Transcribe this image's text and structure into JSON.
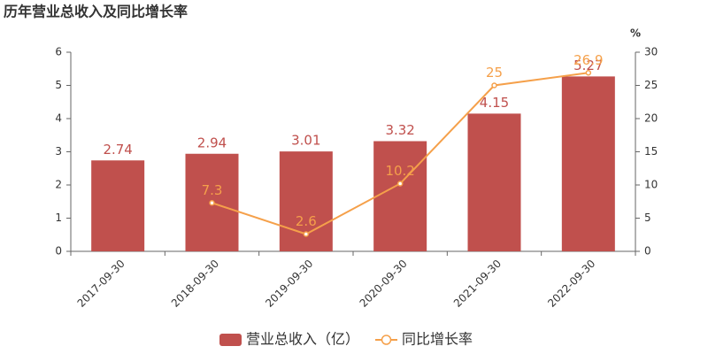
{
  "chart_data": {
    "type": "bar",
    "title": "历年营业总收入及同比增长率",
    "categories": [
      "2017-09-30",
      "2018-09-30",
      "2019-09-30",
      "2020-09-30",
      "2021-09-30",
      "2022-09-30"
    ],
    "series": [
      {
        "name": "营业总收入（亿）",
        "color": "#c0504d",
        "values": [
          2.74,
          2.94,
          3.01,
          3.32,
          4.15,
          5.27
        ]
      },
      {
        "name": "同比增长率",
        "type": "line",
        "axis": "y2",
        "color": "#f5a04a",
        "values": [
          null,
          7.3,
          2.6,
          10.2,
          25,
          26.9
        ]
      }
    ],
    "ylim": [
      0,
      6
    ],
    "yticks": [
      0,
      1,
      2,
      3,
      4,
      5,
      6
    ],
    "y2lim": [
      0,
      30
    ],
    "y2ticks": [
      0,
      5,
      10,
      15,
      20,
      25,
      30
    ],
    "y2_label": "%",
    "grid": false,
    "legend": "bottom"
  }
}
